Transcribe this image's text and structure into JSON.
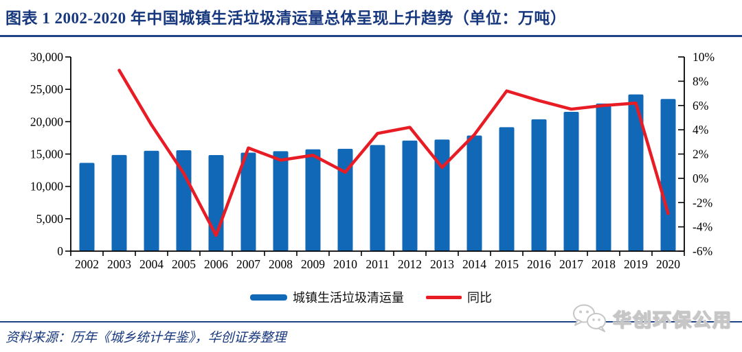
{
  "header": {
    "title": "图表 1   2002-2020 年中国城镇生活垃圾清运量总体呈现上升趋势（单位：万吨）"
  },
  "chart_data": {
    "type": "bar",
    "title": "2002-2020 年中国城镇生活垃圾清运量总体呈现上升趋势",
    "unit": "万吨",
    "categories": [
      "2002",
      "2003",
      "2004",
      "2005",
      "2006",
      "2007",
      "2008",
      "2009",
      "2010",
      "2011",
      "2012",
      "2013",
      "2014",
      "2015",
      "2016",
      "2017",
      "2018",
      "2019",
      "2020"
    ],
    "series": [
      {
        "name": "城镇生活垃圾清运量",
        "type": "bar",
        "axis": "left",
        "values": [
          13638,
          14857,
          15509,
          15577,
          14841,
          15215,
          15438,
          15734,
          15805,
          16395,
          17081,
          17239,
          17860,
          19142,
          20362,
          21521,
          22802,
          24206,
          23512
        ]
      },
      {
        "name": "同比",
        "type": "line",
        "axis": "right",
        "values": [
          null,
          8.9,
          4.4,
          0.4,
          -4.7,
          2.5,
          1.5,
          1.9,
          0.5,
          3.7,
          4.2,
          0.9,
          3.6,
          7.2,
          6.4,
          5.7,
          6.0,
          6.2,
          -2.9
        ]
      }
    ],
    "left_axis": {
      "min": 0,
      "max": 30000,
      "tick_step": 5000,
      "tick_labels": [
        "0",
        "5,000",
        "10,000",
        "15,000",
        "20,000",
        "25,000",
        "30,000"
      ]
    },
    "right_axis": {
      "min": -6,
      "max": 10,
      "tick_step": 2,
      "tick_labels": [
        "-6%",
        "-4%",
        "-2%",
        "0%",
        "2%",
        "4%",
        "6%",
        "8%",
        "10%"
      ]
    },
    "grid": false,
    "legend_position": "bottom",
    "colors": {
      "bar": "#1168b7",
      "line": "#e81c24",
      "axis": "#000000"
    }
  },
  "footer": {
    "source": "资料来源：历年《城乡统计年鉴》，华创证券整理",
    "watermark": "华创环保公用"
  }
}
